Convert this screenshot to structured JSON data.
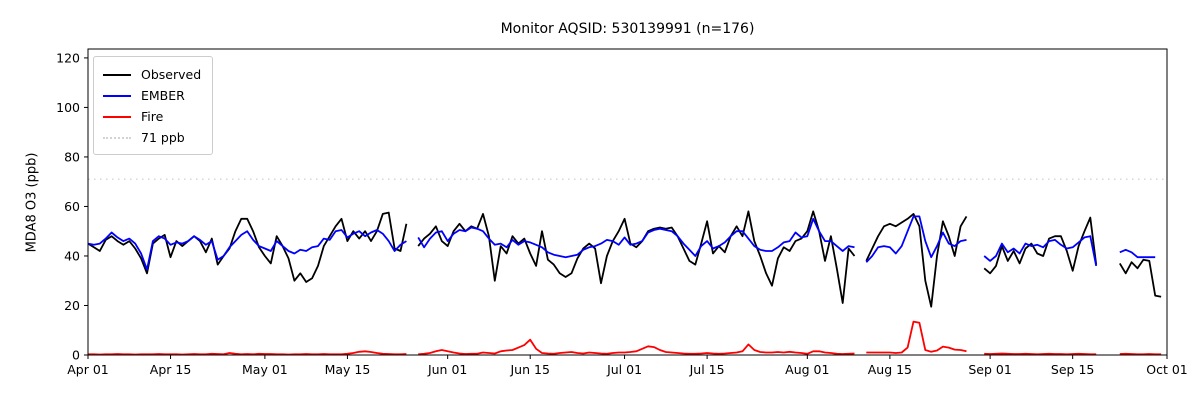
{
  "chart_data": {
    "type": "line",
    "title": "Monitor AQSID: 530139991 (n=176)",
    "ylabel": "MDA8 O3 (ppb)",
    "xlabel": "",
    "grid": false,
    "background": "#ffffff",
    "x_domain_days": [
      0,
      183
    ],
    "x_start_label": "Apr 01",
    "x_end_label": "Oct 01",
    "ylim": [
      0,
      123.6
    ],
    "yticks": [
      0,
      20,
      40,
      60,
      80,
      100,
      120
    ],
    "xticks": [
      {
        "day": 0,
        "label": "Apr 01"
      },
      {
        "day": 14,
        "label": "Apr 15"
      },
      {
        "day": 30,
        "label": "May 01"
      },
      {
        "day": 44,
        "label": "May 15"
      },
      {
        "day": 61,
        "label": "Jun 01"
      },
      {
        "day": 75,
        "label": "Jun 15"
      },
      {
        "day": 91,
        "label": "Jul 01"
      },
      {
        "day": 105,
        "label": "Jul 15"
      },
      {
        "day": 122,
        "label": "Aug 01"
      },
      {
        "day": 136,
        "label": "Aug 15"
      },
      {
        "day": 153,
        "label": "Sep 01"
      },
      {
        "day": 167,
        "label": "Sep 15"
      },
      {
        "day": 183,
        "label": "Oct 01"
      }
    ],
    "threshold": {
      "value": 71,
      "label": "71 ppb",
      "color": "#d3d3d3",
      "style": "dotted"
    },
    "legend": {
      "position": "upper-left",
      "entries": [
        {
          "label": "Observed",
          "color": "#000000",
          "dash": false
        },
        {
          "label": "EMBER",
          "color": "#0000ff",
          "dash": false
        },
        {
          "label": "Fire",
          "color": "#ff0000",
          "dash": false
        },
        {
          "label": "71 ppb",
          "color": "#d3d3d3",
          "dash": true
        }
      ]
    },
    "series": [
      {
        "name": "Observed",
        "color": "#000000",
        "values": [
          45,
          43.5,
          42,
          46.5,
          48,
          46,
          44.5,
          46,
          43,
          39,
          33,
          45,
          47,
          48.5,
          39.5,
          46,
          44,
          46,
          48,
          46,
          41.5,
          47,
          36.5,
          40,
          43,
          50,
          55,
          55,
          50,
          43.5,
          40,
          37,
          48,
          44,
          39,
          30,
          33,
          29.5,
          31,
          36,
          44,
          48,
          52,
          55,
          46,
          50,
          47,
          50,
          46,
          50,
          57,
          57.5,
          43,
          42,
          53,
          null,
          44,
          47,
          49,
          52,
          46,
          44,
          50,
          53,
          50,
          52,
          51,
          57,
          48,
          30,
          44,
          41,
          48,
          45,
          47,
          41,
          36,
          50,
          38.5,
          36.5,
          33,
          31.5,
          33,
          39,
          43,
          45,
          43,
          29,
          40,
          46,
          50,
          55,
          45,
          43.5,
          46,
          50,
          51,
          51.5,
          51,
          51.5,
          48,
          43,
          38,
          36.5,
          45,
          54,
          41,
          44,
          41.5,
          48,
          52,
          48,
          58,
          46,
          40,
          33,
          28,
          39,
          43.5,
          42,
          46,
          47,
          50,
          58,
          50,
          38,
          48,
          35,
          21,
          43,
          40,
          null,
          38,
          43,
          48,
          52,
          53,
          52,
          53.5,
          55,
          57,
          52,
          30,
          19.5,
          40,
          54,
          48,
          40,
          52,
          56,
          null,
          null,
          35,
          33,
          36,
          44,
          38,
          42,
          37,
          43,
          45,
          41,
          40,
          47,
          48,
          48,
          42,
          34,
          44,
          50,
          55.5,
          36.5,
          null,
          null,
          null,
          37,
          33,
          37.5,
          35,
          38.5,
          38,
          24,
          23.5
        ]
      },
      {
        "name": "EMBER",
        "color": "#0000ff",
        "values": [
          45,
          44.5,
          45,
          47,
          49.5,
          47.5,
          46,
          47,
          45,
          41,
          34.5,
          46,
          48,
          47,
          44.5,
          45.5,
          45,
          46,
          48,
          46.5,
          44.5,
          46,
          38.5,
          40,
          43.5,
          46,
          48.5,
          50,
          46.5,
          44,
          43,
          42,
          46,
          44,
          42,
          41,
          42.5,
          42,
          43.5,
          44,
          47,
          46.5,
          50,
          50.5,
          47.5,
          49,
          50,
          48,
          49.5,
          50.5,
          49,
          46,
          42,
          44.5,
          46,
          null,
          47.5,
          43.5,
          47,
          49.5,
          50,
          46,
          49,
          50.5,
          50,
          51.5,
          51,
          50,
          47,
          44.5,
          45,
          43.5,
          46.5,
          44.5,
          46,
          45.5,
          44.5,
          43.5,
          41.5,
          40.5,
          40,
          39.5,
          40,
          40.5,
          42.5,
          43.5,
          44,
          45,
          46.5,
          46,
          44.5,
          47.5,
          44.5,
          45,
          46,
          49.5,
          50.5,
          51,
          50.5,
          50,
          48,
          45,
          42.5,
          40,
          44,
          46,
          43,
          44,
          45.5,
          48,
          50,
          50,
          47,
          44,
          42.5,
          42,
          42,
          43.5,
          45.5,
          46,
          49.5,
          47.5,
          48,
          55,
          50,
          46,
          46,
          44,
          42,
          44,
          43.5,
          null,
          37.5,
          40,
          43.5,
          44,
          43.5,
          41,
          44,
          50,
          56,
          56,
          46,
          39.5,
          44,
          49.5,
          45,
          44,
          46,
          46.5,
          null,
          null,
          40,
          38,
          40,
          45,
          41.5,
          43,
          41,
          45,
          44,
          44.5,
          43.5,
          46,
          46.5,
          44.5,
          43,
          43.5,
          45.5,
          47.5,
          48,
          36,
          null,
          null,
          null,
          41.5,
          42.5,
          41.5,
          39.5,
          39.5,
          39.5,
          39.5,
          null
        ]
      },
      {
        "name": "Fire",
        "color": "#ff0000",
        "values": [
          0.3,
          0.3,
          0.2,
          0.3,
          0.3,
          0.4,
          0.3,
          0.3,
          0.2,
          0.3,
          0.3,
          0.3,
          0.4,
          0.3,
          0.3,
          0.3,
          0.2,
          0.3,
          0.4,
          0.3,
          0.3,
          0.5,
          0.4,
          0.3,
          0.8,
          0.5,
          0.3,
          0.4,
          0.3,
          0.5,
          0.4,
          0.4,
          0.3,
          0.3,
          0.2,
          0.3,
          0.3,
          0.4,
          0.3,
          0.3,
          0.4,
          0.3,
          0.3,
          0.3,
          0.5,
          0.8,
          1.3,
          1.5,
          1.2,
          0.8,
          0.5,
          0.4,
          0.3,
          0.3,
          0.4,
          null,
          0.3,
          0.5,
          0.8,
          1.5,
          2,
          1.5,
          1,
          0.6,
          0.4,
          0.5,
          0.5,
          1,
          0.8,
          0.6,
          1.5,
          1.8,
          2,
          3,
          4,
          6.2,
          2.5,
          0.8,
          0.6,
          0.5,
          0.8,
          1,
          1.2,
          0.8,
          0.6,
          1,
          0.8,
          0.6,
          0.5,
          0.8,
          1,
          1,
          1.2,
          1.5,
          2.5,
          3.5,
          3.2,
          2,
          1.2,
          1,
          0.8,
          0.6,
          0.5,
          0.5,
          0.6,
          0.8,
          0.6,
          0.5,
          0.6,
          0.8,
          1,
          1.5,
          4.3,
          2,
          1.2,
          1,
          1,
          1.2,
          1,
          1.3,
          1,
          0.8,
          0.5,
          1.5,
          1.5,
          1,
          0.8,
          0.5,
          0.4,
          0.5,
          0.6,
          null,
          1,
          1,
          1,
          1,
          1,
          0.8,
          1,
          3,
          13.5,
          13,
          2,
          1.3,
          1.8,
          3.4,
          3,
          2.2,
          2,
          1.5,
          null,
          null,
          0.5,
          0.4,
          0.5,
          0.6,
          0.5,
          0.4,
          0.4,
          0.5,
          0.4,
          0.3,
          0.4,
          0.5,
          0.4,
          0.4,
          0.3,
          0.4,
          0.5,
          0.4,
          0.3,
          0.3,
          null,
          null,
          null,
          0.4,
          0.5,
          0.4,
          0.3,
          0.3,
          0.4,
          0.3,
          0.3
        ]
      }
    ]
  }
}
